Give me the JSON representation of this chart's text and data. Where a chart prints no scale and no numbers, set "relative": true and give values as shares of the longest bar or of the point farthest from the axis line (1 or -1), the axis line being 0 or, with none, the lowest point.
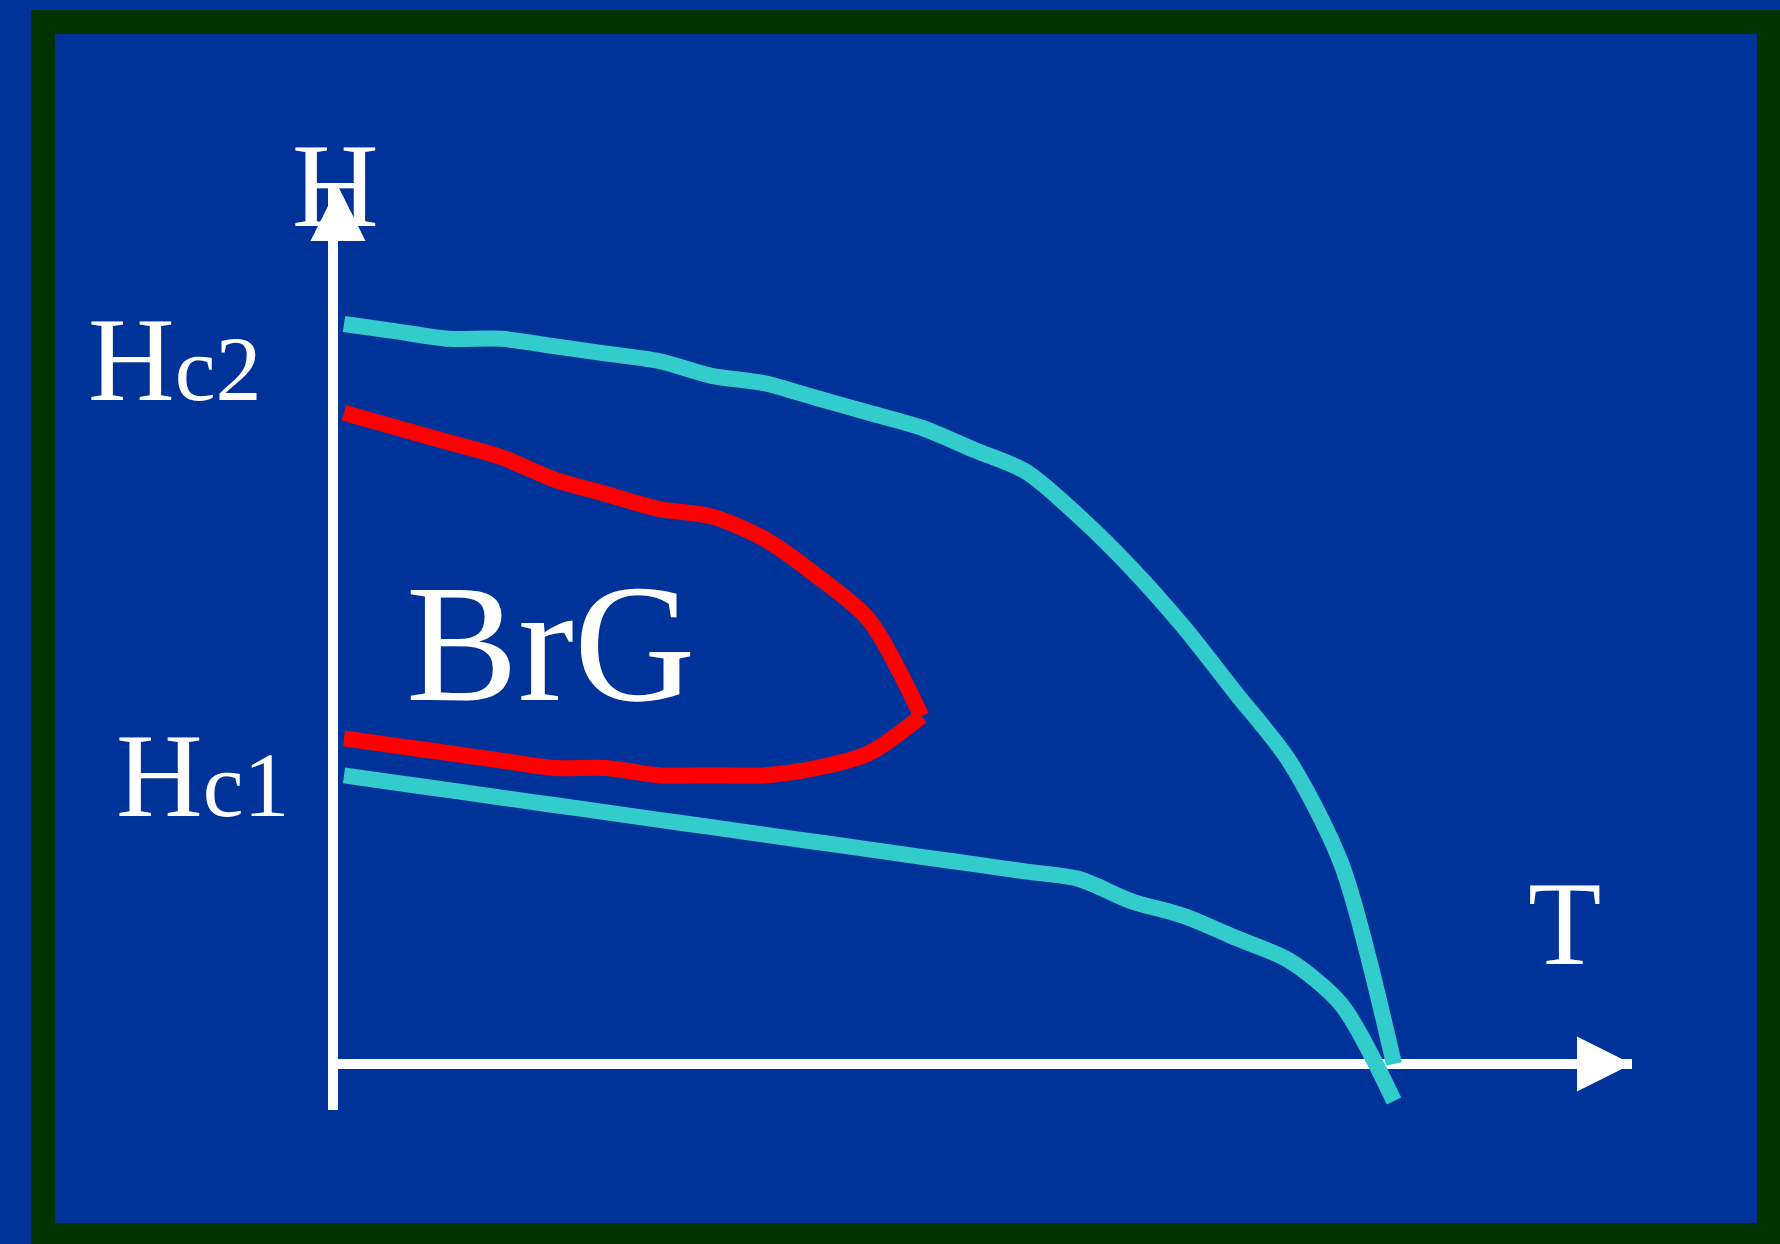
{
  "chart_data": {
    "type": "line",
    "relative": true,
    "xlabel": "T",
    "ylabel": "H",
    "categories": [
      null,
      null,
      null,
      null,
      null,
      null,
      null,
      null,
      null,
      null,
      null,
      null,
      null,
      null,
      null,
      null,
      null,
      null,
      null,
      null,
      null
    ],
    "annotations": [
      "Hc2",
      "Hc1",
      "BrG"
    ],
    "series": [
      {
        "color": "#33cccc",
        "values": [
          1.0,
          0.99,
          0.98,
          0.98,
          0.97,
          0.96,
          0.95,
          0.93,
          0.92,
          0.9,
          0.88,
          0.86,
          0.83,
          0.8,
          0.74,
          0.67,
          0.59,
          0.5,
          0.41,
          0.27,
          0.0
        ]
      },
      {
        "color": "#33cccc",
        "values": [
          0.39,
          0.38,
          0.37,
          0.36,
          0.35,
          0.34,
          0.33,
          0.32,
          0.31,
          0.3,
          0.29,
          0.28,
          0.27,
          0.26,
          0.25,
          0.22,
          0.2,
          0.17,
          0.14,
          0.08,
          -0.05
        ]
      },
      {
        "color": "#ff0000",
        "values": [
          0.88,
          0.86,
          0.84,
          0.82,
          0.79,
          0.77,
          0.75,
          0.74,
          0.71,
          0.66,
          0.6,
          0.47,
          null,
          null,
          null,
          null,
          null,
          null,
          null,
          null,
          null
        ]
      },
      {
        "color": "#ff0000",
        "values": [
          0.44,
          0.43,
          0.42,
          0.41,
          0.4,
          0.4,
          0.39,
          0.39,
          0.39,
          0.4,
          0.42,
          0.47,
          null,
          null,
          null,
          null,
          null,
          null,
          null,
          null,
          null
        ]
      }
    ]
  }
}
